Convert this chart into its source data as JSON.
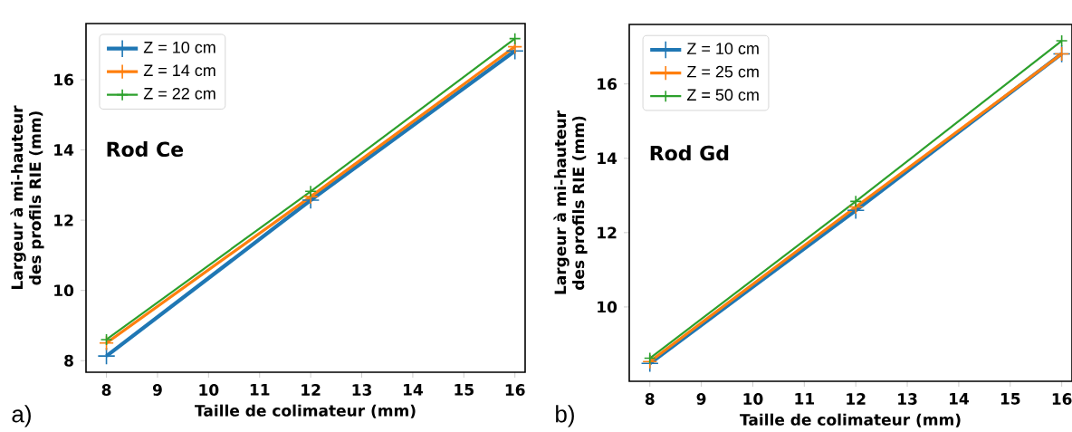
{
  "chart_data": [
    {
      "type": "line",
      "xlabel": "Taille de colimateur (mm)",
      "ylabel": "Largeur à mi-hauteur des profils RIE (mm)",
      "annotations": [
        "Rod Ce",
        "a)"
      ],
      "x": [
        8,
        12,
        16
      ],
      "xlim": [
        7.6,
        16.2
      ],
      "ylim": [
        7.67,
        17.6
      ],
      "xticks": [
        8,
        9,
        10,
        11,
        12,
        13,
        14,
        15,
        16
      ],
      "yticks": [
        8,
        10,
        12,
        14,
        16
      ],
      "legend": "top left",
      "marker": "cross",
      "grid": false,
      "series": [
        {
          "name": "Z = 10 cm",
          "color": "#1f77b4",
          "values": [
            8.13,
            12.57,
            16.82
          ]
        },
        {
          "name": "Z = 14 cm",
          "color": "#ff7f0e",
          "values": [
            8.5,
            12.67,
            16.94
          ]
        },
        {
          "name": "Z = 22 cm",
          "color": "#2ca02c",
          "values": [
            8.6,
            12.82,
            17.17
          ]
        }
      ]
    },
    {
      "type": "line",
      "xlabel": "Taille de colimateur (mm)",
      "ylabel": "Largeur à mi-hauteur des profils RIE (mm)",
      "annotations": [
        "Rod Gd",
        "b)"
      ],
      "x": [
        8,
        12,
        16
      ],
      "xlim": [
        7.6,
        16.2
      ],
      "ylim": [
        8.0,
        17.6
      ],
      "xticks": [
        8,
        9,
        10,
        11,
        12,
        13,
        14,
        15,
        16
      ],
      "yticks": [
        10,
        12,
        14,
        16
      ],
      "legend": "top left",
      "marker": "cross",
      "grid": false,
      "series": [
        {
          "name": "Z = 10 cm",
          "color": "#1f77b4",
          "values": [
            8.48,
            12.6,
            16.81
          ]
        },
        {
          "name": "Z = 25 cm",
          "color": "#ff7f0e",
          "values": [
            8.53,
            12.69,
            16.81
          ]
        },
        {
          "name": "Z = 50 cm",
          "color": "#2ca02c",
          "values": [
            8.62,
            12.84,
            17.16
          ]
        }
      ]
    }
  ]
}
